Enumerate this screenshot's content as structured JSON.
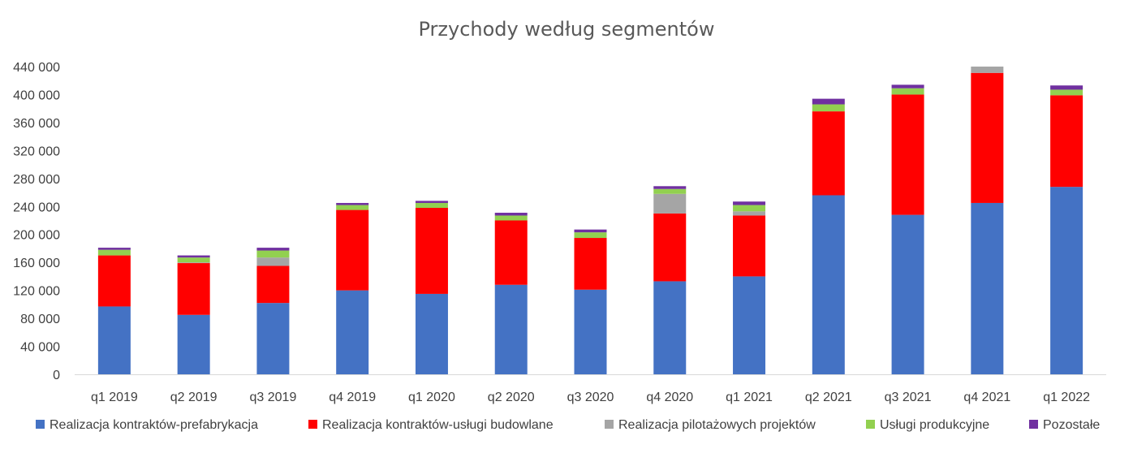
{
  "chart_data": {
    "type": "bar",
    "stacked": true,
    "title": "Przychody według segmentów",
    "xlabel": "",
    "ylabel": "",
    "ylim": [
      0,
      440000
    ],
    "yticks": [
      0,
      40000,
      80000,
      120000,
      160000,
      200000,
      240000,
      280000,
      320000,
      360000,
      400000,
      440000
    ],
    "ytick_labels": [
      "0",
      "40 000",
      "80 000",
      "120 000",
      "160 000",
      "200 000",
      "240 000",
      "280 000",
      "320 000",
      "360 000",
      "400 000",
      "440 000"
    ],
    "grid": false,
    "legend_position": "bottom",
    "categories": [
      "q1 2019",
      "q2 2019",
      "q3 2019",
      "q4 2019",
      "q1 2020",
      "q2 2020",
      "q3 2020",
      "q4 2020",
      "q1 2021",
      "q2 2021",
      "q3 2021",
      "q4 2021",
      "q1 2022"
    ],
    "series": [
      {
        "name": "Realizacja kontraktów-prefabrykacja",
        "color": "#4472C4",
        "values": [
          97000,
          85000,
          102000,
          120000,
          115000,
          128000,
          121000,
          133000,
          140000,
          256000,
          228000,
          245000,
          268000
        ]
      },
      {
        "name": "Realizacja kontraktów-usługi budowlane",
        "color": "#FF0000",
        "values": [
          73000,
          74000,
          53000,
          115000,
          123000,
          92000,
          74000,
          97000,
          87000,
          120000,
          172000,
          186000,
          131000
        ]
      },
      {
        "name": "Realizacja pilotażowych projektów",
        "color": "#A5A5A5",
        "values": [
          0,
          1000,
          12000,
          0,
          0,
          0,
          0,
          28000,
          6000,
          0,
          0,
          9000,
          0
        ]
      },
      {
        "name": "Usługi produkcyjne",
        "color": "#92D050",
        "values": [
          8000,
          7000,
          10000,
          7000,
          7000,
          7000,
          8000,
          7000,
          9000,
          10000,
          9000,
          0,
          8000
        ]
      },
      {
        "name": "Pozostałe",
        "color": "#7030A0",
        "values": [
          3000,
          3000,
          4000,
          3000,
          3000,
          4000,
          4000,
          4000,
          5000,
          8000,
          5000,
          0,
          6000
        ]
      }
    ]
  }
}
